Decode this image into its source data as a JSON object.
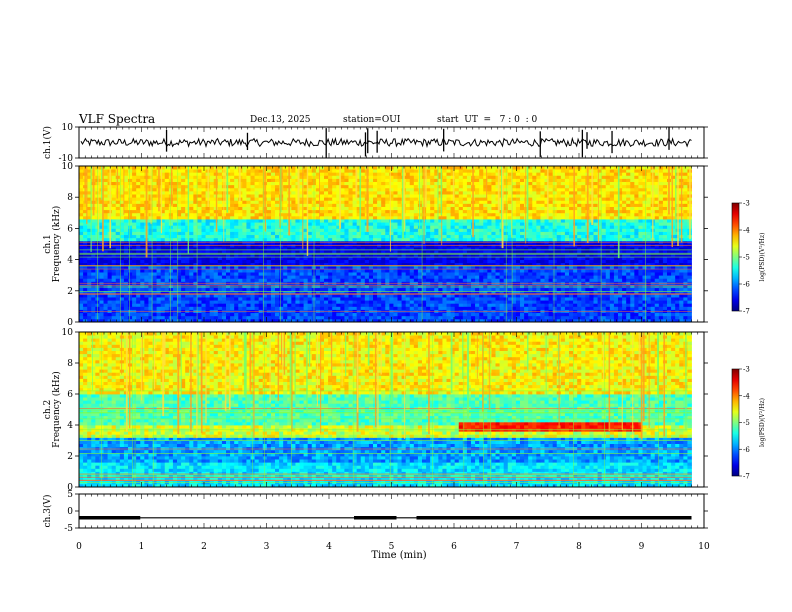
{
  "header": {
    "title": "VLF Spectra",
    "date": "Dec.13, 2025",
    "station": "station=OUI",
    "start_ut": "start  UT  =   7 : 0  : 0"
  },
  "chart_data": [
    {
      "type": "line",
      "panel": "ch1-waveform",
      "ylabel": "ch.1(V)",
      "ylim": [
        -10,
        10
      ],
      "yticks": [
        10,
        -10
      ],
      "xlim": [
        0,
        10
      ]
    },
    {
      "type": "heatmap",
      "panel": "ch1-spectrogram",
      "ylabel": "ch.1\nFrequency (kHz)",
      "ylim": [
        0,
        10
      ],
      "yticks": [
        0,
        2,
        4,
        6,
        8,
        10
      ],
      "xlim": [
        0,
        10
      ],
      "data_end_min": 9.8,
      "colorbar": {
        "label": "log(PSD)(V²/Hz)",
        "ticks": [
          -3,
          -4,
          -5,
          -6,
          -7
        ],
        "range": [
          -7,
          -3
        ]
      }
    },
    {
      "type": "heatmap",
      "panel": "ch2-spectrogram",
      "ylabel": "ch.2\nFrequency (kHz)",
      "ylim": [
        0,
        10
      ],
      "yticks": [
        0,
        2,
        4,
        6,
        8,
        10
      ],
      "xlim": [
        0,
        10
      ],
      "data_end_min": 9.8,
      "colorbar": {
        "label": "log(PSD)(V²/Hz)",
        "ticks": [
          -3,
          -4,
          -5,
          -6,
          -7
        ],
        "range": [
          -7,
          -3
        ]
      }
    },
    {
      "type": "line",
      "panel": "ch3-waveform",
      "ylabel": "ch.3(V)",
      "ylim": [
        -5,
        5
      ],
      "yticks": [
        5,
        0,
        -5
      ],
      "xlim": [
        0,
        10
      ],
      "xlabel": "Time (min)",
      "xticks": [
        0,
        1,
        2,
        3,
        4,
        5,
        6,
        7,
        8,
        9,
        10
      ]
    }
  ]
}
